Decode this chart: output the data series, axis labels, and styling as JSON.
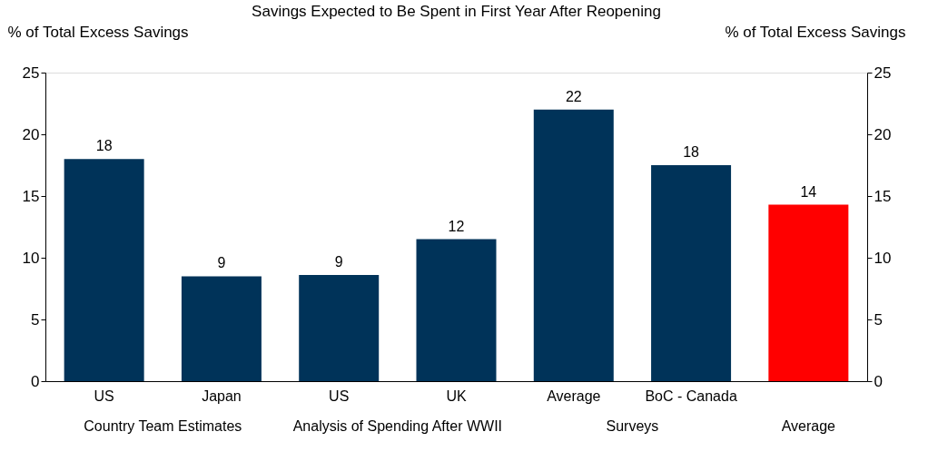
{
  "chart_data": {
    "type": "bar",
    "title": "Savings Expected to Be Spent in First Year After Reopening",
    "ylabel": "% of Total Excess Savings",
    "y2label": "% of Total Excess Savings",
    "categories": [
      "US",
      "Japan",
      "US",
      "UK",
      "Average",
      "BoC - Canada",
      null
    ],
    "values": [
      18,
      8.5,
      8.6,
      11.5,
      22,
      17.5,
      14.3
    ],
    "colors": [
      "#003359",
      "#003359",
      "#003359",
      "#003359",
      "#003359",
      "#003359",
      "#ff0000"
    ],
    "value_labels": [
      "18",
      "9",
      "9",
      "12",
      "22",
      "18",
      "14"
    ],
    "ylim": [
      0,
      25
    ],
    "yticks": [
      0,
      5,
      10,
      15,
      20,
      25
    ],
    "y2lim": [
      0,
      25
    ],
    "y2ticks": [
      0,
      5,
      10,
      15,
      20,
      25
    ],
    "annotations": [
      "Country Team Estimates",
      "Analysis of Spending After WWII",
      "Surveys",
      "Average"
    ],
    "grid": false
  }
}
